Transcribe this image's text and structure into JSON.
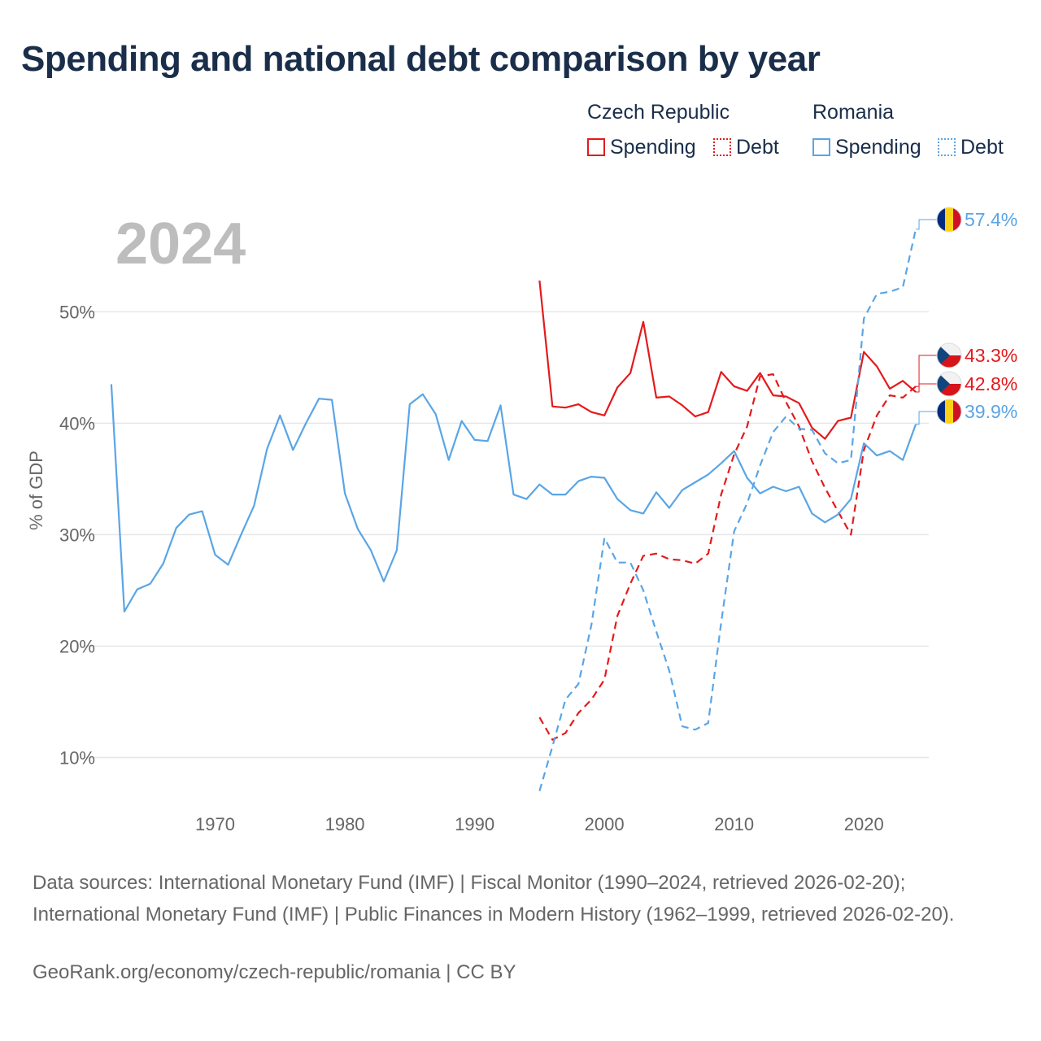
{
  "title": "Spending and national debt comparison by year",
  "legend": {
    "groups": [
      {
        "name": "Czech Republic",
        "spending_label": "Spending",
        "debt_label": "Debt"
      },
      {
        "name": "Romania",
        "spending_label": "Spending",
        "debt_label": "Debt"
      }
    ]
  },
  "footer": {
    "sources": "Data sources: International Monetary Fund (IMF) | Fiscal Monitor (1990–2024, retrieved 2026-02-20); International Monetary Fund (IMF) | Public Finances in Modern History (1962–1999, retrieved 2026-02-20).",
    "credit": "GeoRank.org/economy/czech-republic/romania | CC BY"
  },
  "chart_data": {
    "type": "line",
    "year_label": "2024",
    "ylabel": "% of GDP",
    "xlim": [
      1960,
      2025
    ],
    "ylim": [
      5,
      59
    ],
    "x_ticks": [
      1970,
      1980,
      1990,
      2000,
      2010,
      2020
    ],
    "x_tick_labels": [
      "1970",
      "1980",
      "1990",
      "2000",
      "2010",
      "2020"
    ],
    "y_ticks": [
      10,
      20,
      30,
      40,
      50
    ],
    "y_tick_labels": [
      "10%",
      "20%",
      "30%",
      "40%",
      "50%"
    ],
    "colors": {
      "czech": "#e41a1c",
      "romania": "#5aa5e6",
      "grid": "#e6e6e6",
      "axis_text": "#666666",
      "year_label": "#bdbdbd"
    },
    "series": [
      {
        "name": "Czech Republic Spending",
        "country": "czech",
        "style": "solid",
        "x": [
          1995,
          1996,
          1997,
          1998,
          1999,
          2000,
          2001,
          2002,
          2003,
          2004,
          2005,
          2006,
          2007,
          2008,
          2009,
          2010,
          2011,
          2012,
          2013,
          2014,
          2015,
          2016,
          2017,
          2018,
          2019,
          2020,
          2021,
          2022,
          2023,
          2024
        ],
        "values": [
          52.8,
          41.5,
          41.4,
          41.7,
          41.0,
          40.7,
          43.2,
          44.5,
          49.1,
          42.3,
          42.4,
          41.6,
          40.6,
          41.0,
          44.6,
          43.3,
          42.9,
          44.5,
          42.5,
          42.4,
          41.8,
          39.6,
          38.6,
          40.2,
          40.5,
          46.4,
          45.1,
          43.1,
          43.8,
          42.8
        ]
      },
      {
        "name": "Czech Republic Debt",
        "country": "czech",
        "style": "dashed",
        "x": [
          1995,
          1996,
          1997,
          1998,
          1999,
          2000,
          2001,
          2002,
          2003,
          2004,
          2005,
          2006,
          2007,
          2008,
          2009,
          2010,
          2011,
          2012,
          2013,
          2014,
          2015,
          2016,
          2017,
          2018,
          2019,
          2020,
          2021,
          2022,
          2023,
          2024
        ],
        "values": [
          13.6,
          11.6,
          12.2,
          14.0,
          15.2,
          17.0,
          22.7,
          25.6,
          28.1,
          28.3,
          27.8,
          27.7,
          27.4,
          28.3,
          33.6,
          37.2,
          39.7,
          44.2,
          44.4,
          41.9,
          39.7,
          36.6,
          34.2,
          32.1,
          30.0,
          37.6,
          40.7,
          42.5,
          42.3,
          43.3
        ]
      },
      {
        "name": "Romania Spending",
        "country": "romania",
        "style": "solid",
        "x": [
          1962,
          1963,
          1964,
          1965,
          1966,
          1967,
          1968,
          1969,
          1970,
          1971,
          1972,
          1973,
          1974,
          1975,
          1976,
          1977,
          1978,
          1979,
          1980,
          1981,
          1982,
          1983,
          1984,
          1985,
          1986,
          1987,
          1988,
          1989,
          1990,
          1991,
          1992,
          1993,
          1994,
          1995,
          1996,
          1997,
          1998,
          1999,
          2000,
          2001,
          2002,
          2003,
          2004,
          2005,
          2006,
          2007,
          2008,
          2009,
          2010,
          2011,
          2012,
          2013,
          2014,
          2015,
          2016,
          2017,
          2018,
          2019,
          2020,
          2021,
          2022,
          2023,
          2024
        ],
        "values": [
          43.5,
          23.1,
          25.1,
          25.6,
          27.4,
          30.6,
          31.8,
          32.1,
          28.2,
          27.3,
          30.0,
          32.6,
          37.7,
          40.7,
          37.6,
          40.0,
          42.2,
          42.1,
          33.7,
          30.5,
          28.6,
          25.8,
          28.6,
          41.7,
          42.6,
          40.8,
          36.7,
          40.2,
          38.5,
          38.4,
          41.6,
          33.6,
          33.2,
          34.5,
          33.6,
          33.6,
          34.8,
          35.2,
          35.1,
          33.2,
          32.2,
          31.9,
          33.8,
          32.4,
          34.0,
          34.7,
          35.4,
          36.4,
          37.5,
          35.1,
          33.7,
          34.3,
          33.9,
          34.3,
          31.9,
          31.1,
          31.8,
          33.2,
          38.2,
          37.1,
          37.5,
          36.7,
          39.9
        ]
      },
      {
        "name": "Romania Debt",
        "country": "romania",
        "style": "dashed",
        "x": [
          1995,
          1996,
          1997,
          1998,
          1999,
          2000,
          2001,
          2002,
          2003,
          2004,
          2005,
          2006,
          2007,
          2008,
          2009,
          2010,
          2011,
          2012,
          2013,
          2014,
          2015,
          2016,
          2017,
          2018,
          2019,
          2020,
          2021,
          2022,
          2023,
          2024
        ],
        "values": [
          7.0,
          11.0,
          15.2,
          16.6,
          21.9,
          29.7,
          27.5,
          27.5,
          25.0,
          21.3,
          17.8,
          12.8,
          12.5,
          13.1,
          22.1,
          30.3,
          32.8,
          36.2,
          39.2,
          40.6,
          39.5,
          39.4,
          37.3,
          36.4,
          36.7,
          49.4,
          51.6,
          51.8,
          52.2,
          57.4
        ]
      }
    ],
    "end_labels": [
      {
        "country": "romania",
        "text": "57.4%",
        "value": 57.4,
        "flag": "romania"
      },
      {
        "country": "czech",
        "text": "43.3%",
        "value": 43.3,
        "flag": "czech"
      },
      {
        "country": "czech",
        "text": "42.8%",
        "value": 42.8,
        "flag": "czech"
      },
      {
        "country": "romania",
        "text": "39.9%",
        "value": 39.9,
        "flag": "romania"
      }
    ]
  }
}
